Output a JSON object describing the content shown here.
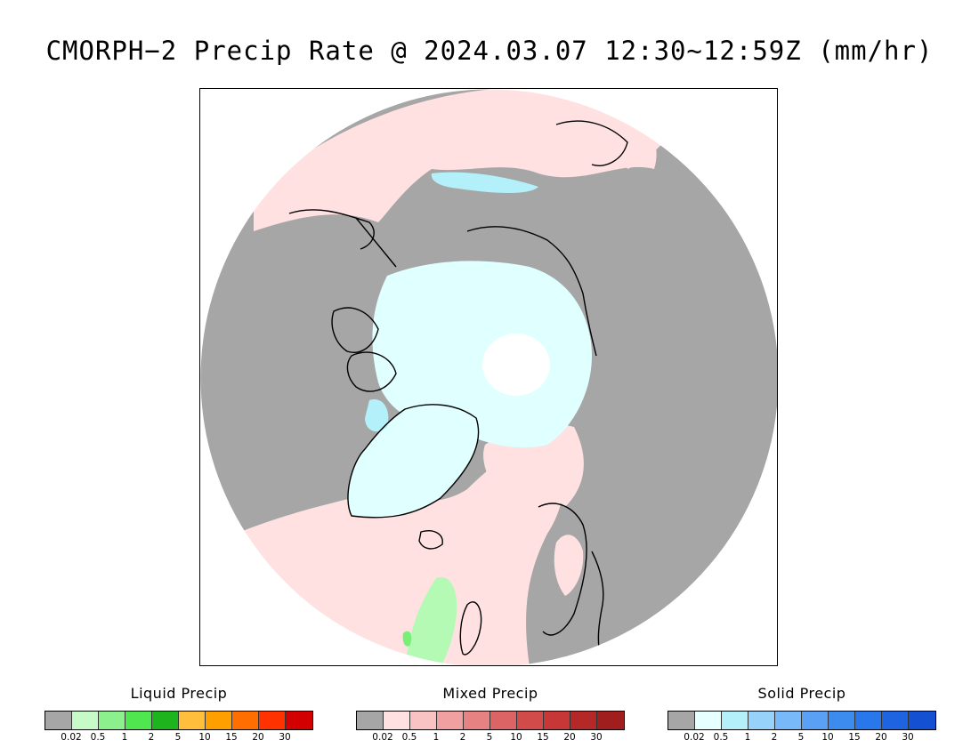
{
  "title": "CMORPH−2 Precip Rate @ 2024.03.07 12:30∼12:59Z (mm/hr)",
  "map": {
    "projection": "north-polar-stereographic",
    "colors": {
      "no_precip": "#a6a6a6",
      "ocean_mixed": "#ffe1e1",
      "snow_light": "#e0ffff",
      "snow_lightblue": "#b4f0fa",
      "pole_gap": "#ffffff",
      "liquid_light": "#b4fab4",
      "liquid_green": "#78f078",
      "coastline": "#000000"
    }
  },
  "legends": [
    {
      "title": "Liquid Precip",
      "colors": [
        "#a6a6a6",
        "#c8fac8",
        "#8cf08c",
        "#50e650",
        "#1eb41e",
        "#ffbe3c",
        "#ffa000",
        "#ff6e00",
        "#ff3200",
        "#d20000"
      ],
      "ticks": [
        "0.02",
        "0.5",
        "1",
        "2",
        "5",
        "10",
        "15",
        "20",
        "30"
      ]
    },
    {
      "title": "Mixed Precip",
      "colors": [
        "#a6a6a6",
        "#ffe1e1",
        "#fac3c3",
        "#f0a0a0",
        "#e68282",
        "#dc6464",
        "#d24b4b",
        "#c83737",
        "#b42828",
        "#a01e1e"
      ],
      "ticks": [
        "0.02",
        "0.5",
        "1",
        "2",
        "5",
        "10",
        "15",
        "20",
        "30"
      ]
    },
    {
      "title": "Solid Precip",
      "colors": [
        "#a6a6a6",
        "#e6ffff",
        "#b4f0fa",
        "#96d2fa",
        "#78b9fa",
        "#5aa0f5",
        "#3c8cf0",
        "#2878eb",
        "#1e64e1",
        "#1450d2"
      ],
      "ticks": [
        "0.02",
        "0.5",
        "1",
        "2",
        "5",
        "10",
        "15",
        "20",
        "30"
      ]
    }
  ]
}
